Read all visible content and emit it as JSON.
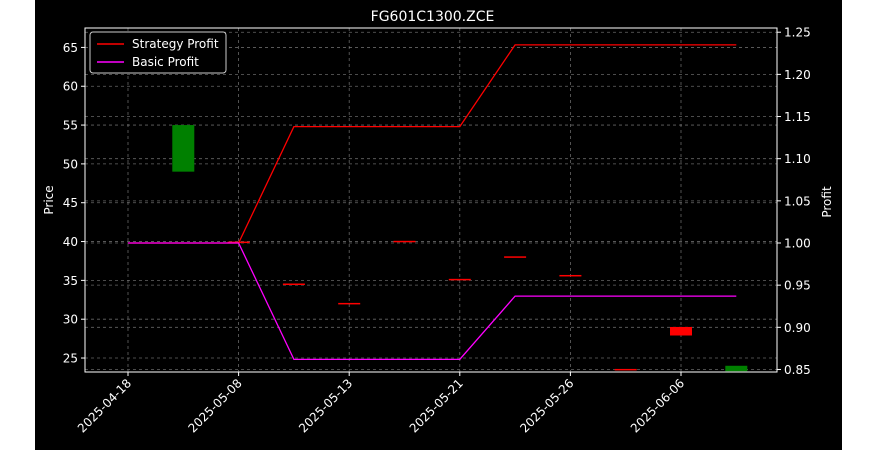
{
  "chart_data": {
    "type": "candlestick",
    "title": "FG601C1300.ZCE",
    "ylabel": "Price",
    "y2label": "Profit",
    "ylim": [
      23.2,
      67.5
    ],
    "y2lim": [
      0.847,
      1.255
    ],
    "yticks": [
      25,
      30,
      35,
      40,
      45,
      50,
      55,
      60,
      65
    ],
    "y2ticks": [
      0.85,
      0.9,
      0.95,
      1.0,
      1.05,
      1.1,
      1.15,
      1.2,
      1.25
    ],
    "y2tick_labels": [
      "0.85",
      "0.90",
      "0.95",
      "1.00",
      "1.05",
      "1.10",
      "1.15",
      "1.20",
      "1.25"
    ],
    "xticks": [
      "2025-04-18",
      "2025-05-08",
      "2025-05-13",
      "2025-05-21",
      "2025-05-26",
      "2025-06-06"
    ],
    "x_count": 12,
    "grid": true,
    "legend_position": "top-left",
    "candles": [
      {
        "x": 1,
        "open": 49.0,
        "close": 55.0,
        "color": "#008000"
      },
      {
        "x": 2,
        "open": 39.9,
        "close": 39.9,
        "color": "#ff0000"
      },
      {
        "x": 3,
        "open": 34.5,
        "close": 34.5,
        "color": "#ff0000"
      },
      {
        "x": 4,
        "open": 32.0,
        "close": 32.0,
        "color": "#ff0000"
      },
      {
        "x": 5,
        "open": 40.0,
        "close": 40.0,
        "color": "#ff0000"
      },
      {
        "x": 6,
        "open": 35.1,
        "close": 35.1,
        "color": "#ff0000"
      },
      {
        "x": 7,
        "open": 38.0,
        "close": 38.0,
        "color": "#ff0000"
      },
      {
        "x": 8,
        "open": 35.6,
        "close": 35.6,
        "color": "#ff0000"
      },
      {
        "x": 9,
        "open": 23.5,
        "close": 23.5,
        "color": "#ff0000"
      },
      {
        "x": 10,
        "open": 29.0,
        "close": 27.9,
        "color": "#ff0000"
      },
      {
        "x": 11,
        "open": 24.0,
        "close": 23.3,
        "color": "#008000"
      }
    ],
    "series": [
      {
        "name": "Strategy Profit",
        "color": "#ff0000",
        "x": [
          0,
          2,
          3,
          6,
          7,
          11
        ],
        "values": [
          1.0,
          1.0,
          1.138,
          1.138,
          1.235,
          1.235
        ]
      },
      {
        "name": "Basic Profit",
        "color": "#ff00ff",
        "x": [
          0,
          2,
          3,
          6,
          7,
          11
        ],
        "values": [
          1.0,
          1.0,
          0.862,
          0.862,
          0.937,
          0.937
        ]
      }
    ]
  }
}
